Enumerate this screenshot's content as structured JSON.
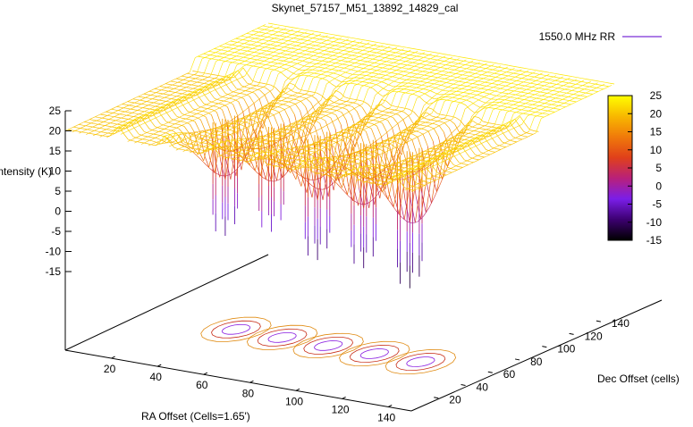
{
  "chart_data": {
    "type": "surface3d",
    "title": "Skynet_57157_M51_13892_14829_cal",
    "legend": {
      "entries": [
        "1550.0 MHz RR"
      ],
      "placement": "top-right",
      "line_color": "#7a2fd6"
    },
    "zlabel": "Intensity (K)",
    "xlabel": "RA Offset (Cells=1.65')",
    "ylabel": "Dec Offset (cells)",
    "z_ticks": [
      25,
      20,
      15,
      10,
      5,
      0,
      -5,
      -10,
      -15
    ],
    "x_ticks": [
      20,
      40,
      60,
      80,
      100,
      120,
      140
    ],
    "y_ticks": [
      20,
      40,
      60,
      80,
      100,
      120,
      140
    ],
    "zlim": [
      -15,
      25
    ],
    "xlim": [
      0,
      150
    ],
    "ylim": [
      0,
      150
    ],
    "grid": false,
    "colorbar": {
      "ticks": [
        25,
        20,
        15,
        10,
        5,
        0,
        -5,
        -10,
        -15
      ],
      "range": [
        -15,
        25
      ],
      "palette": [
        "#000000",
        "#3c0070",
        "#7a1ee8",
        "#b8207a",
        "#e0401a",
        "#f07a0a",
        "#f8b800",
        "#ffff00"
      ]
    },
    "surface": {
      "plateau_value": 23,
      "scan_rows_x": [
        22,
        42,
        62,
        82,
        102,
        122,
        142
      ],
      "dips": [
        {
          "x": 40,
          "min": -10
        },
        {
          "x": 60,
          "min": -7
        },
        {
          "x": 80,
          "min": -12
        },
        {
          "x": 100,
          "min": -12
        },
        {
          "x": 120,
          "min": -15
        }
      ]
    },
    "contour_projection": true
  }
}
